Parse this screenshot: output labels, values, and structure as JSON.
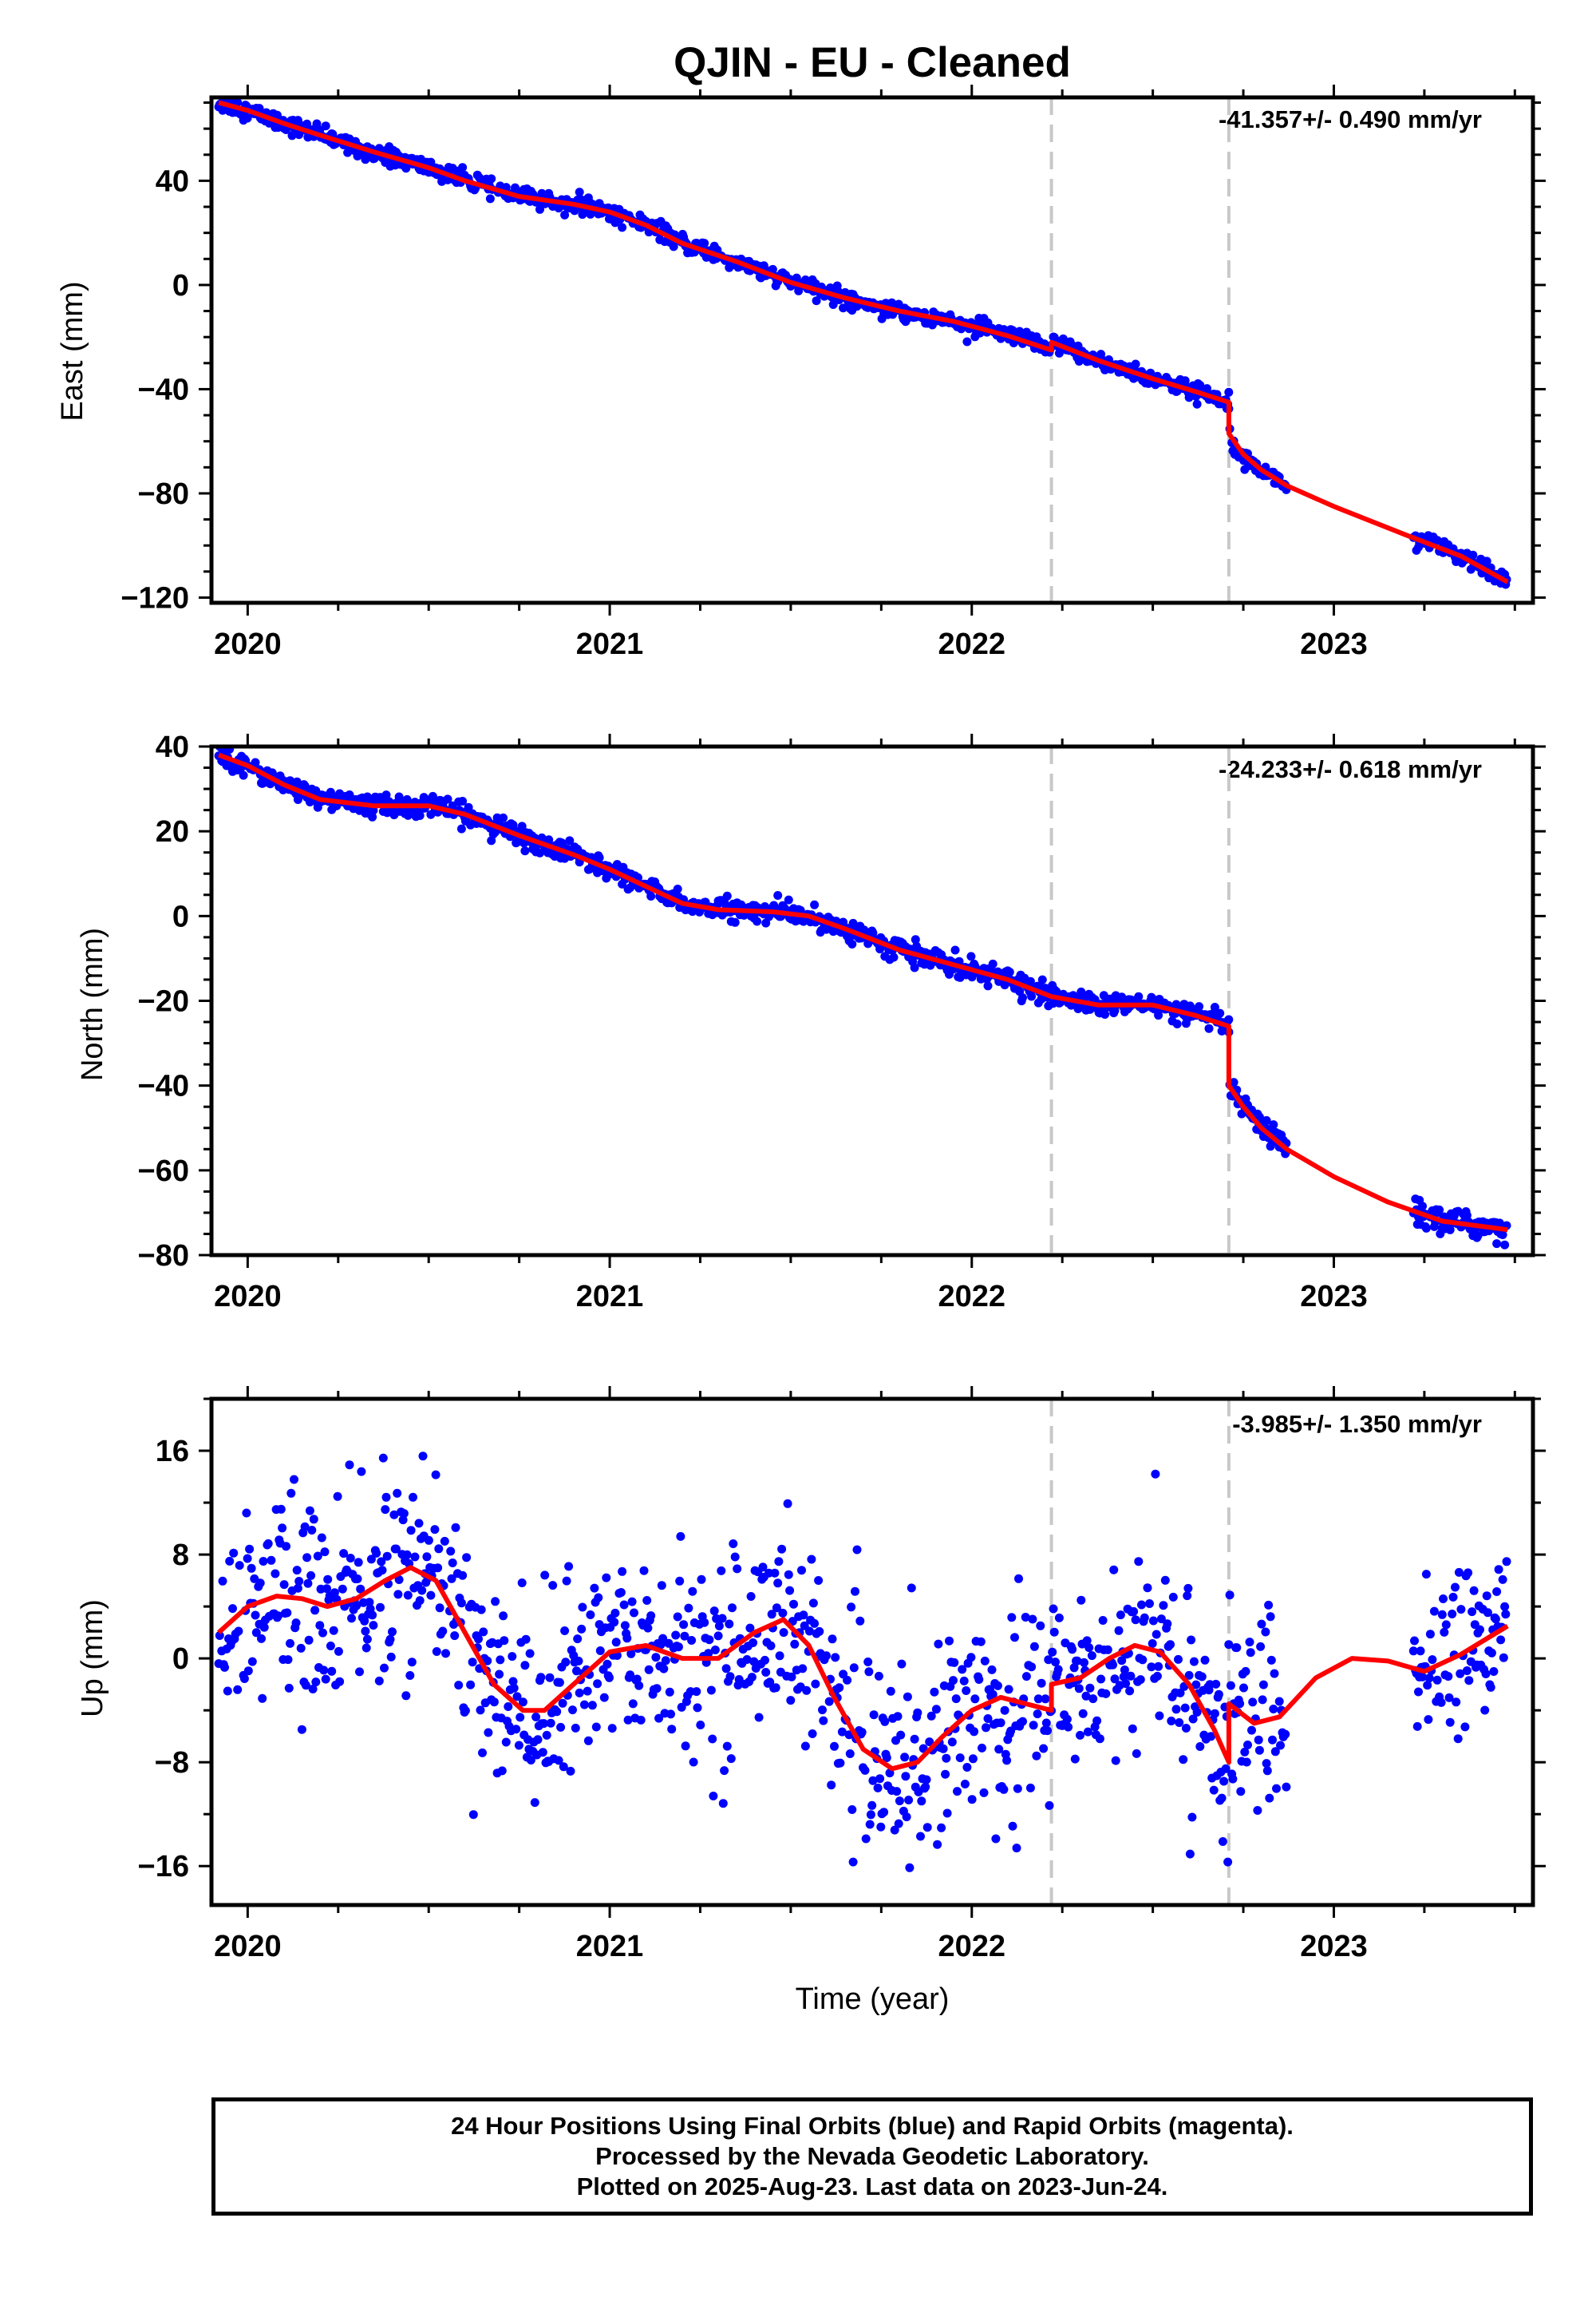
{
  "chart_data": [
    {
      "type": "scatter",
      "title": "QJIN  - EU - Cleaned",
      "ylabel": "East (mm)",
      "xlabel": "",
      "rate": "-41.357+/- 0.490 mm/yr",
      "xlim": [
        2019.9,
        2023.55
      ],
      "ylim": [
        -122,
        72
      ],
      "xticks": [
        2020,
        2021,
        2022,
        2023
      ],
      "xtick_labels": [
        "2020",
        "2021",
        "2022",
        "2023"
      ],
      "yticks": [
        40,
        0,
        -40,
        -80,
        -120
      ],
      "ytick_labels": [
        "40",
        "0",
        "−40",
        "−80",
        "−120"
      ],
      "minor_step": 10,
      "events": [
        2022.22,
        2022.71
      ],
      "model": [
        [
          2019.92,
          70.0
        ],
        [
          2020.0,
          67.0
        ],
        [
          2020.1,
          62.0
        ],
        [
          2020.2,
          57.5
        ],
        [
          2020.35,
          51.0
        ],
        [
          2020.5,
          45.0
        ],
        [
          2020.6,
          40.0
        ],
        [
          2020.75,
          34.0
        ],
        [
          2020.9,
          31.0
        ],
        [
          2021.0,
          28.0
        ],
        [
          2021.1,
          23.0
        ],
        [
          2021.2,
          16.0
        ],
        [
          2021.35,
          9.0
        ],
        [
          2021.5,
          1.0
        ],
        [
          2021.65,
          -5.0
        ],
        [
          2021.8,
          -10.0
        ],
        [
          2021.95,
          -14.0
        ],
        [
          2022.1,
          -19.5
        ],
        [
          2022.22,
          -25.0
        ],
        [
          2022.22,
          -22.0
        ],
        [
          2022.35,
          -29.0
        ],
        [
          2022.5,
          -36.0
        ],
        [
          2022.62,
          -41.0
        ],
        [
          2022.71,
          -45.0
        ],
        [
          2022.71,
          -57.0
        ],
        [
          2022.75,
          -65.0
        ],
        [
          2022.8,
          -71.0
        ],
        [
          2022.87,
          -77.0
        ],
        [
          2023.0,
          -85.0
        ],
        [
          2023.2,
          -96.0
        ],
        [
          2023.35,
          -104.0
        ],
        [
          2023.48,
          -114.0
        ]
      ],
      "segments": [
        {
          "x0": 2019.92,
          "x1": 2022.71,
          "noise": 1.6
        },
        {
          "x0": 2022.71,
          "x1": 2022.87,
          "noise": 1.6
        },
        {
          "x0": 2023.22,
          "x1": 2023.48,
          "noise": 1.6
        }
      ]
    },
    {
      "type": "scatter",
      "title": "",
      "ylabel": "North (mm)",
      "xlabel": "",
      "rate": "-24.233+/- 0.618 mm/yr",
      "xlim": [
        2019.9,
        2023.55
      ],
      "ylim": [
        -80,
        40
      ],
      "xticks": [
        2020,
        2021,
        2022,
        2023
      ],
      "xtick_labels": [
        "2020",
        "2021",
        "2022",
        "2023"
      ],
      "yticks": [
        40,
        20,
        0,
        -20,
        -40,
        -60,
        -80
      ],
      "ytick_labels": [
        "40",
        "20",
        "0",
        "−20",
        "−40",
        "−60",
        "−80"
      ],
      "minor_step": 5,
      "events": [
        2022.22,
        2022.71
      ],
      "model": [
        [
          2019.92,
          38.0
        ],
        [
          2020.0,
          35.5
        ],
        [
          2020.1,
          31.0
        ],
        [
          2020.2,
          27.5
        ],
        [
          2020.35,
          26.0
        ],
        [
          2020.5,
          26.0
        ],
        [
          2020.6,
          24.0
        ],
        [
          2020.75,
          19.0
        ],
        [
          2020.9,
          14.5
        ],
        [
          2021.0,
          11.0
        ],
        [
          2021.1,
          7.0
        ],
        [
          2021.2,
          3.0
        ],
        [
          2021.3,
          1.5
        ],
        [
          2021.45,
          1.0
        ],
        [
          2021.55,
          0.0
        ],
        [
          2021.65,
          -3.0
        ],
        [
          2021.8,
          -8.0
        ],
        [
          2021.95,
          -11.5
        ],
        [
          2022.1,
          -15.0
        ],
        [
          2022.22,
          -19.0
        ],
        [
          2022.35,
          -21.0
        ],
        [
          2022.5,
          -21.0
        ],
        [
          2022.62,
          -23.5
        ],
        [
          2022.71,
          -26.0
        ],
        [
          2022.71,
          -40.0
        ],
        [
          2022.75,
          -45.0
        ],
        [
          2022.8,
          -50.0
        ],
        [
          2022.87,
          -55.0
        ],
        [
          2023.0,
          -61.5
        ],
        [
          2023.15,
          -67.5
        ],
        [
          2023.3,
          -72.0
        ],
        [
          2023.48,
          -74.0
        ]
      ],
      "segments": [
        {
          "x0": 2019.92,
          "x1": 2022.71,
          "noise": 1.2
        },
        {
          "x0": 2022.71,
          "x1": 2022.87,
          "noise": 1.2
        },
        {
          "x0": 2023.22,
          "x1": 2023.48,
          "noise": 1.5
        }
      ]
    },
    {
      "type": "scatter",
      "title": "",
      "ylabel": "Up (mm)",
      "xlabel": "Time (year)",
      "rate": "-3.985+/- 1.350 mm/yr",
      "xlim": [
        2019.9,
        2023.55
      ],
      "ylim": [
        -19,
        20
      ],
      "xticks": [
        2020,
        2021,
        2022,
        2023
      ],
      "xtick_labels": [
        "2020",
        "2021",
        "2022",
        "2023"
      ],
      "yticks": [
        16,
        8,
        0,
        -8,
        -16
      ],
      "ytick_labels": [
        "16",
        "8",
        "0",
        "−8",
        "−16"
      ],
      "minor_step": 4,
      "events": [
        2022.22,
        2022.71
      ],
      "model": [
        [
          2019.92,
          2.0
        ],
        [
          2020.0,
          4.0
        ],
        [
          2020.08,
          4.8
        ],
        [
          2020.15,
          4.6
        ],
        [
          2020.22,
          4.0
        ],
        [
          2020.3,
          4.6
        ],
        [
          2020.38,
          6.0
        ],
        [
          2020.45,
          7.0
        ],
        [
          2020.52,
          6.0
        ],
        [
          2020.6,
          2.0
        ],
        [
          2020.68,
          -2.0
        ],
        [
          2020.76,
          -4.0
        ],
        [
          2020.82,
          -4.0
        ],
        [
          2020.9,
          -2.0
        ],
        [
          2021.0,
          0.5
        ],
        [
          2021.1,
          1.0
        ],
        [
          2021.2,
          0.0
        ],
        [
          2021.3,
          0.0
        ],
        [
          2021.4,
          2.0
        ],
        [
          2021.48,
          3.0
        ],
        [
          2021.55,
          1.0
        ],
        [
          2021.62,
          -3.0
        ],
        [
          2021.7,
          -7.0
        ],
        [
          2021.78,
          -8.5
        ],
        [
          2021.85,
          -8.0
        ],
        [
          2021.92,
          -6.0
        ],
        [
          2022.0,
          -4.0
        ],
        [
          2022.08,
          -3.0
        ],
        [
          2022.15,
          -3.5
        ],
        [
          2022.22,
          -4.0
        ],
        [
          2022.22,
          -2.0
        ],
        [
          2022.3,
          -1.5
        ],
        [
          2022.38,
          0.0
        ],
        [
          2022.45,
          1.0
        ],
        [
          2022.52,
          0.5
        ],
        [
          2022.6,
          -2.0
        ],
        [
          2022.67,
          -5.5
        ],
        [
          2022.71,
          -8.0
        ],
        [
          2022.71,
          -3.5
        ],
        [
          2022.78,
          -5.0
        ],
        [
          2022.85,
          -4.5
        ],
        [
          2022.95,
          -1.5
        ],
        [
          2023.05,
          0.0
        ],
        [
          2023.15,
          -0.2
        ],
        [
          2023.25,
          -1.0
        ],
        [
          2023.35,
          0.3
        ],
        [
          2023.48,
          2.5
        ]
      ],
      "segments": [
        {
          "x0": 2019.92,
          "x1": 2022.71,
          "noise": 3.8
        },
        {
          "x0": 2022.71,
          "x1": 2022.87,
          "noise": 4.0
        },
        {
          "x0": 2023.22,
          "x1": 2023.48,
          "noise": 3.2
        }
      ]
    }
  ],
  "footer": {
    "line1": "24 Hour Positions Using Final Orbits (blue) and Rapid Orbits (magenta).",
    "line2": "Processed by the Nevada Geodetic Laboratory.",
    "line3": "Plotted on 2025-Aug-23. Last data on 2023-Jun-24."
  },
  "colors": {
    "data": "#0000ff",
    "model": "#ff0000",
    "event_line": "#c8c8c8",
    "axis": "#000000"
  }
}
